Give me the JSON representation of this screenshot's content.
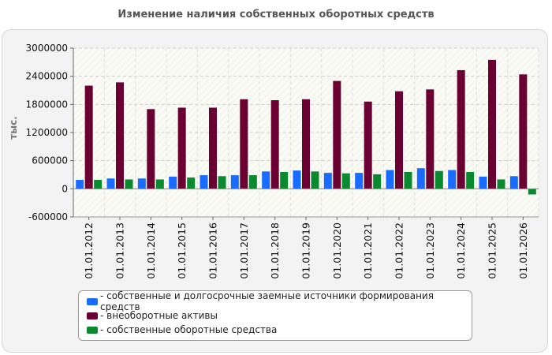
{
  "chart_data": {
    "type": "bar",
    "title": "Изменение наличия собственных оборотных средств",
    "ylabel": "тыс.",
    "xlabel": "",
    "ylim": [
      -600000,
      3000000
    ],
    "yticks": [
      3000000,
      2400000,
      1800000,
      1200000,
      600000,
      0,
      -600000
    ],
    "ytick_labels": [
      "3000000",
      "2400000",
      "1800000",
      "1200000",
      "600000",
      "0",
      "-600000"
    ],
    "grid": true,
    "legend_position": "bottom",
    "categories": [
      "01.01.2012",
      "01.01.2013",
      "01.01.2014",
      "01.01.2015",
      "01.01.2016",
      "01.01.2017",
      "01.01.2018",
      "01.01.2019",
      "01.01.2020",
      "01.01.2021",
      "01.01.2022",
      "01.01.2023",
      "01.01.2024",
      "01.01.2025",
      "01.01.2026"
    ],
    "series": [
      {
        "name": "- собственные и долгосрочные заемные источники формирования средств",
        "color": "#1a6bff",
        "values": [
          190000,
          220000,
          220000,
          260000,
          290000,
          290000,
          370000,
          390000,
          340000,
          340000,
          400000,
          440000,
          400000,
          260000,
          270000
        ]
      },
      {
        "name": "- внеоборотные активы",
        "color": "#6b0033",
        "values": [
          2200000,
          2270000,
          1700000,
          1730000,
          1730000,
          1910000,
          1890000,
          1910000,
          2300000,
          1860000,
          2080000,
          2120000,
          2530000,
          2750000,
          2440000
        ]
      },
      {
        "name": "- собственные оборотные средства",
        "color": "#0a8a2e",
        "values": [
          190000,
          200000,
          200000,
          240000,
          270000,
          290000,
          360000,
          370000,
          330000,
          310000,
          360000,
          380000,
          360000,
          200000,
          -120000
        ]
      }
    ]
  }
}
